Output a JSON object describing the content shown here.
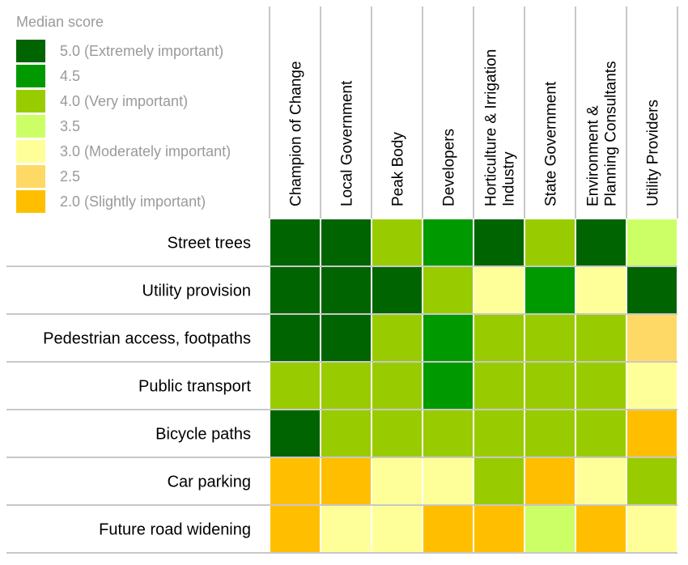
{
  "chart_data": {
    "type": "heatmap",
    "legend": {
      "title": "Median score",
      "entries": [
        {
          "value": 5.0,
          "label": "5.0 (Extremely important)"
        },
        {
          "value": 4.5,
          "label": "4.5"
        },
        {
          "value": 4.0,
          "label": "4.0 (Very important)"
        },
        {
          "value": 3.5,
          "label": "3.5"
        },
        {
          "value": 3.0,
          "label": "3.0 (Moderately important)"
        },
        {
          "value": 2.5,
          "label": "2.5"
        },
        {
          "value": 2.0,
          "label": "2.0 (Slightly important)"
        }
      ]
    },
    "colors": {
      "5.0": "#006400",
      "4.5": "#009900",
      "4.0": "#99CC00",
      "3.5": "#CCFF66",
      "3.0": "#FFFF99",
      "2.5": "#FFD966",
      "2.0": "#FFBF00"
    },
    "columns": [
      [
        "Champion of Change"
      ],
      [
        "Local Government"
      ],
      [
        "Peak Body"
      ],
      [
        "Developers"
      ],
      [
        "Horticulture & Irrigation",
        "Industry"
      ],
      [
        "State Government"
      ],
      [
        "Environment &",
        "Planning Consultants"
      ],
      [
        "Utility Providers"
      ]
    ],
    "rows": [
      "Street trees",
      "Utility provision",
      "Pedestrian access, footpaths",
      "Public transport",
      "Bicycle paths",
      "Car parking",
      "Future road widening"
    ],
    "values": [
      [
        5.0,
        5.0,
        4.0,
        4.5,
        5.0,
        4.0,
        5.0,
        3.5
      ],
      [
        5.0,
        5.0,
        5.0,
        4.0,
        3.0,
        4.5,
        3.0,
        5.0
      ],
      [
        5.0,
        5.0,
        4.0,
        4.5,
        4.0,
        4.0,
        4.0,
        2.5
      ],
      [
        4.0,
        4.0,
        4.0,
        4.5,
        4.0,
        4.0,
        4.0,
        3.0
      ],
      [
        5.0,
        4.0,
        4.0,
        4.0,
        4.0,
        4.0,
        4.0,
        2.0
      ],
      [
        2.0,
        2.0,
        3.0,
        3.0,
        4.0,
        2.0,
        3.0,
        4.0
      ],
      [
        2.0,
        3.0,
        3.0,
        2.0,
        2.0,
        3.5,
        2.0,
        3.0
      ]
    ]
  }
}
